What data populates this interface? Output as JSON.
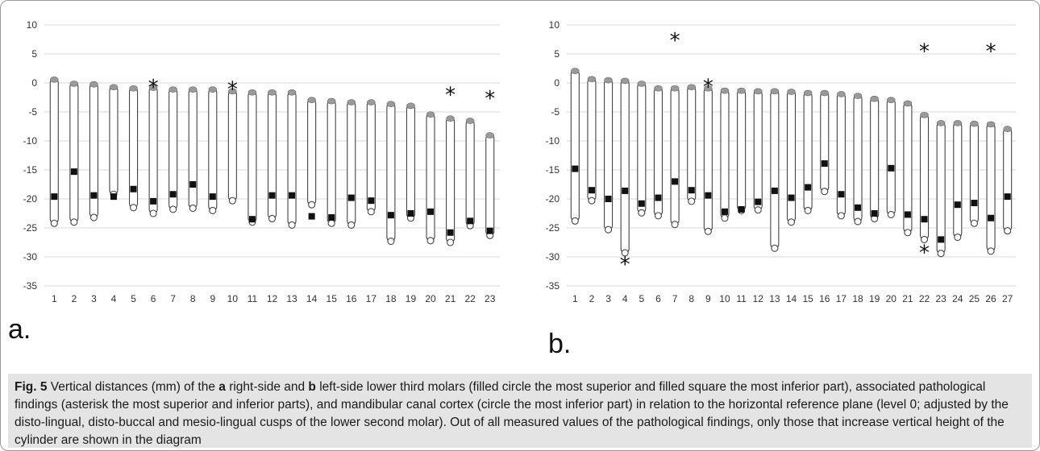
{
  "chart_data": [
    {
      "type": "range",
      "panel": "a.",
      "ylim": [
        -35,
        10
      ],
      "yticks": [
        10,
        5,
        0,
        -5,
        -10,
        -15,
        -20,
        -25,
        -30,
        -35
      ],
      "grid": true,
      "categories": [
        "1",
        "2",
        "3",
        "4",
        "5",
        "6",
        "7",
        "8",
        "9",
        "10",
        "11",
        "12",
        "13",
        "14",
        "15",
        "16",
        "17",
        "18",
        "19",
        "20",
        "21",
        "22",
        "23"
      ],
      "series": [
        {
          "values": [
            0.7,
            0.0,
            -0.1,
            -0.6,
            -0.8,
            -0.7,
            -1.0,
            -1.0,
            -1.0,
            -1.3,
            -1.5,
            -1.5,
            -1.5,
            -2.8,
            -3.0,
            -3.2,
            -3.2,
            -3.5,
            -3.8,
            -5.3,
            -6.0,
            -6.4,
            -8.9
          ]
        },
        {
          "values": [
            -19.6,
            -15.3,
            -19.4,
            -19.6,
            -18.3,
            -20.4,
            -19.2,
            -17.5,
            -19.6,
            null,
            -23.5,
            -19.4,
            -19.4,
            -23.0,
            -23.2,
            -19.8,
            -20.3,
            -22.8,
            -22.5,
            -22.2,
            -25.8,
            -23.8,
            -25.5
          ]
        },
        {
          "values": [
            -24.2,
            -24.0,
            -23.2,
            -19.2,
            -21.5,
            -22.5,
            -21.8,
            -21.6,
            -22.0,
            -20.3,
            -24.0,
            -23.4,
            -24.5,
            -21.0,
            -24.2,
            -24.5,
            -22.2,
            -27.3,
            -23.3,
            -27.2,
            -27.5,
            -24.6,
            -26.3
          ]
        },
        {
          "values": [
            null,
            null,
            null,
            null,
            null,
            -0.3,
            null,
            null,
            null,
            -0.6,
            null,
            null,
            null,
            null,
            null,
            null,
            null,
            null,
            null,
            null,
            -1.6,
            null,
            -2.2
          ]
        }
      ]
    },
    {
      "type": "range",
      "panel": "b.",
      "ylim": [
        -35,
        10
      ],
      "yticks": [
        10,
        5,
        0,
        -5,
        -10,
        -15,
        -20,
        -25,
        -30,
        -35
      ],
      "grid": true,
      "categories": [
        "1",
        "2",
        "3",
        "4",
        "5",
        "6",
        "7",
        "8",
        "9",
        "10",
        "11",
        "12",
        "13",
        "14",
        "15",
        "16",
        "17",
        "18",
        "19",
        "20",
        "21",
        "22",
        "23",
        "24",
        "25",
        "26",
        "27"
      ],
      "series": [
        {
          "values": [
            2.2,
            0.8,
            0.6,
            0.5,
            0.0,
            -0.8,
            -0.8,
            -0.6,
            -0.8,
            -1.2,
            -1.2,
            -1.3,
            -1.3,
            -1.4,
            -1.6,
            -1.6,
            -1.8,
            -2.1,
            -2.6,
            -2.8,
            -3.4,
            -5.4,
            -6.8,
            -6.8,
            -6.9,
            -7.0,
            -7.8
          ]
        },
        {
          "values": [
            -14.8,
            -18.5,
            -20.0,
            -18.6,
            -20.8,
            -19.8,
            -17.0,
            -18.5,
            -19.4,
            -22.2,
            -21.8,
            -20.5,
            -18.6,
            -19.8,
            -18.0,
            -13.9,
            -19.2,
            -21.5,
            -22.5,
            -14.7,
            -22.7,
            -23.5,
            -27.0,
            -21.0,
            -20.7,
            -23.3,
            -19.6
          ]
        },
        {
          "values": [
            -23.8,
            -20.3,
            -25.3,
            -29.3,
            -22.4,
            -22.9,
            -24.4,
            -20.4,
            -25.6,
            -23.3,
            -22.0,
            -21.9,
            -28.5,
            -24.0,
            -22.0,
            -18.7,
            -22.9,
            -23.9,
            -23.4,
            -22.7,
            -25.8,
            -27.0,
            -29.4,
            -26.6,
            -24.2,
            -29.0,
            -25.5
          ]
        },
        {
          "values": [
            null,
            null,
            null,
            null,
            null,
            null,
            7.8,
            null,
            -0.2,
            null,
            null,
            null,
            null,
            null,
            null,
            null,
            null,
            null,
            null,
            null,
            null,
            5.9,
            null,
            null,
            null,
            5.9,
            null
          ]
        },
        {
          "values": [
            null,
            null,
            null,
            -30.8,
            null,
            null,
            null,
            null,
            null,
            null,
            null,
            null,
            null,
            null,
            null,
            null,
            null,
            null,
            null,
            null,
            null,
            -28.8,
            null,
            null,
            null,
            null,
            null
          ]
        }
      ]
    }
  ],
  "labels": {
    "panel_a": "a.",
    "panel_b": "b."
  },
  "caption": {
    "fig": "Fig. 5",
    "t1": "  Vertical distances (mm) of the ",
    "a": "a",
    "t2": " right-side and ",
    "b": "b",
    "t3": " left-side lower third molars (filled circle the most superior and filled square the most inferior part), associated pathological findings (asterisk the most superior and inferior parts), and mandibular canal cortex (circle the most inferior part) in relation to the horizontal reference plane (level 0; adjusted by the disto-lingual, disto-buccal and mesio-lingual cusps of the lower second molar). Out of all measured values of the pathological findings, only those that increase vertical height of the cylinder are shown in the diagram"
  },
  "colors": {
    "grid": "#d9d9d9",
    "bar_stroke": "#444444",
    "top_marker": "#9a9a9a",
    "square": "#111111",
    "caption_bg": "#e4e4e4"
  }
}
